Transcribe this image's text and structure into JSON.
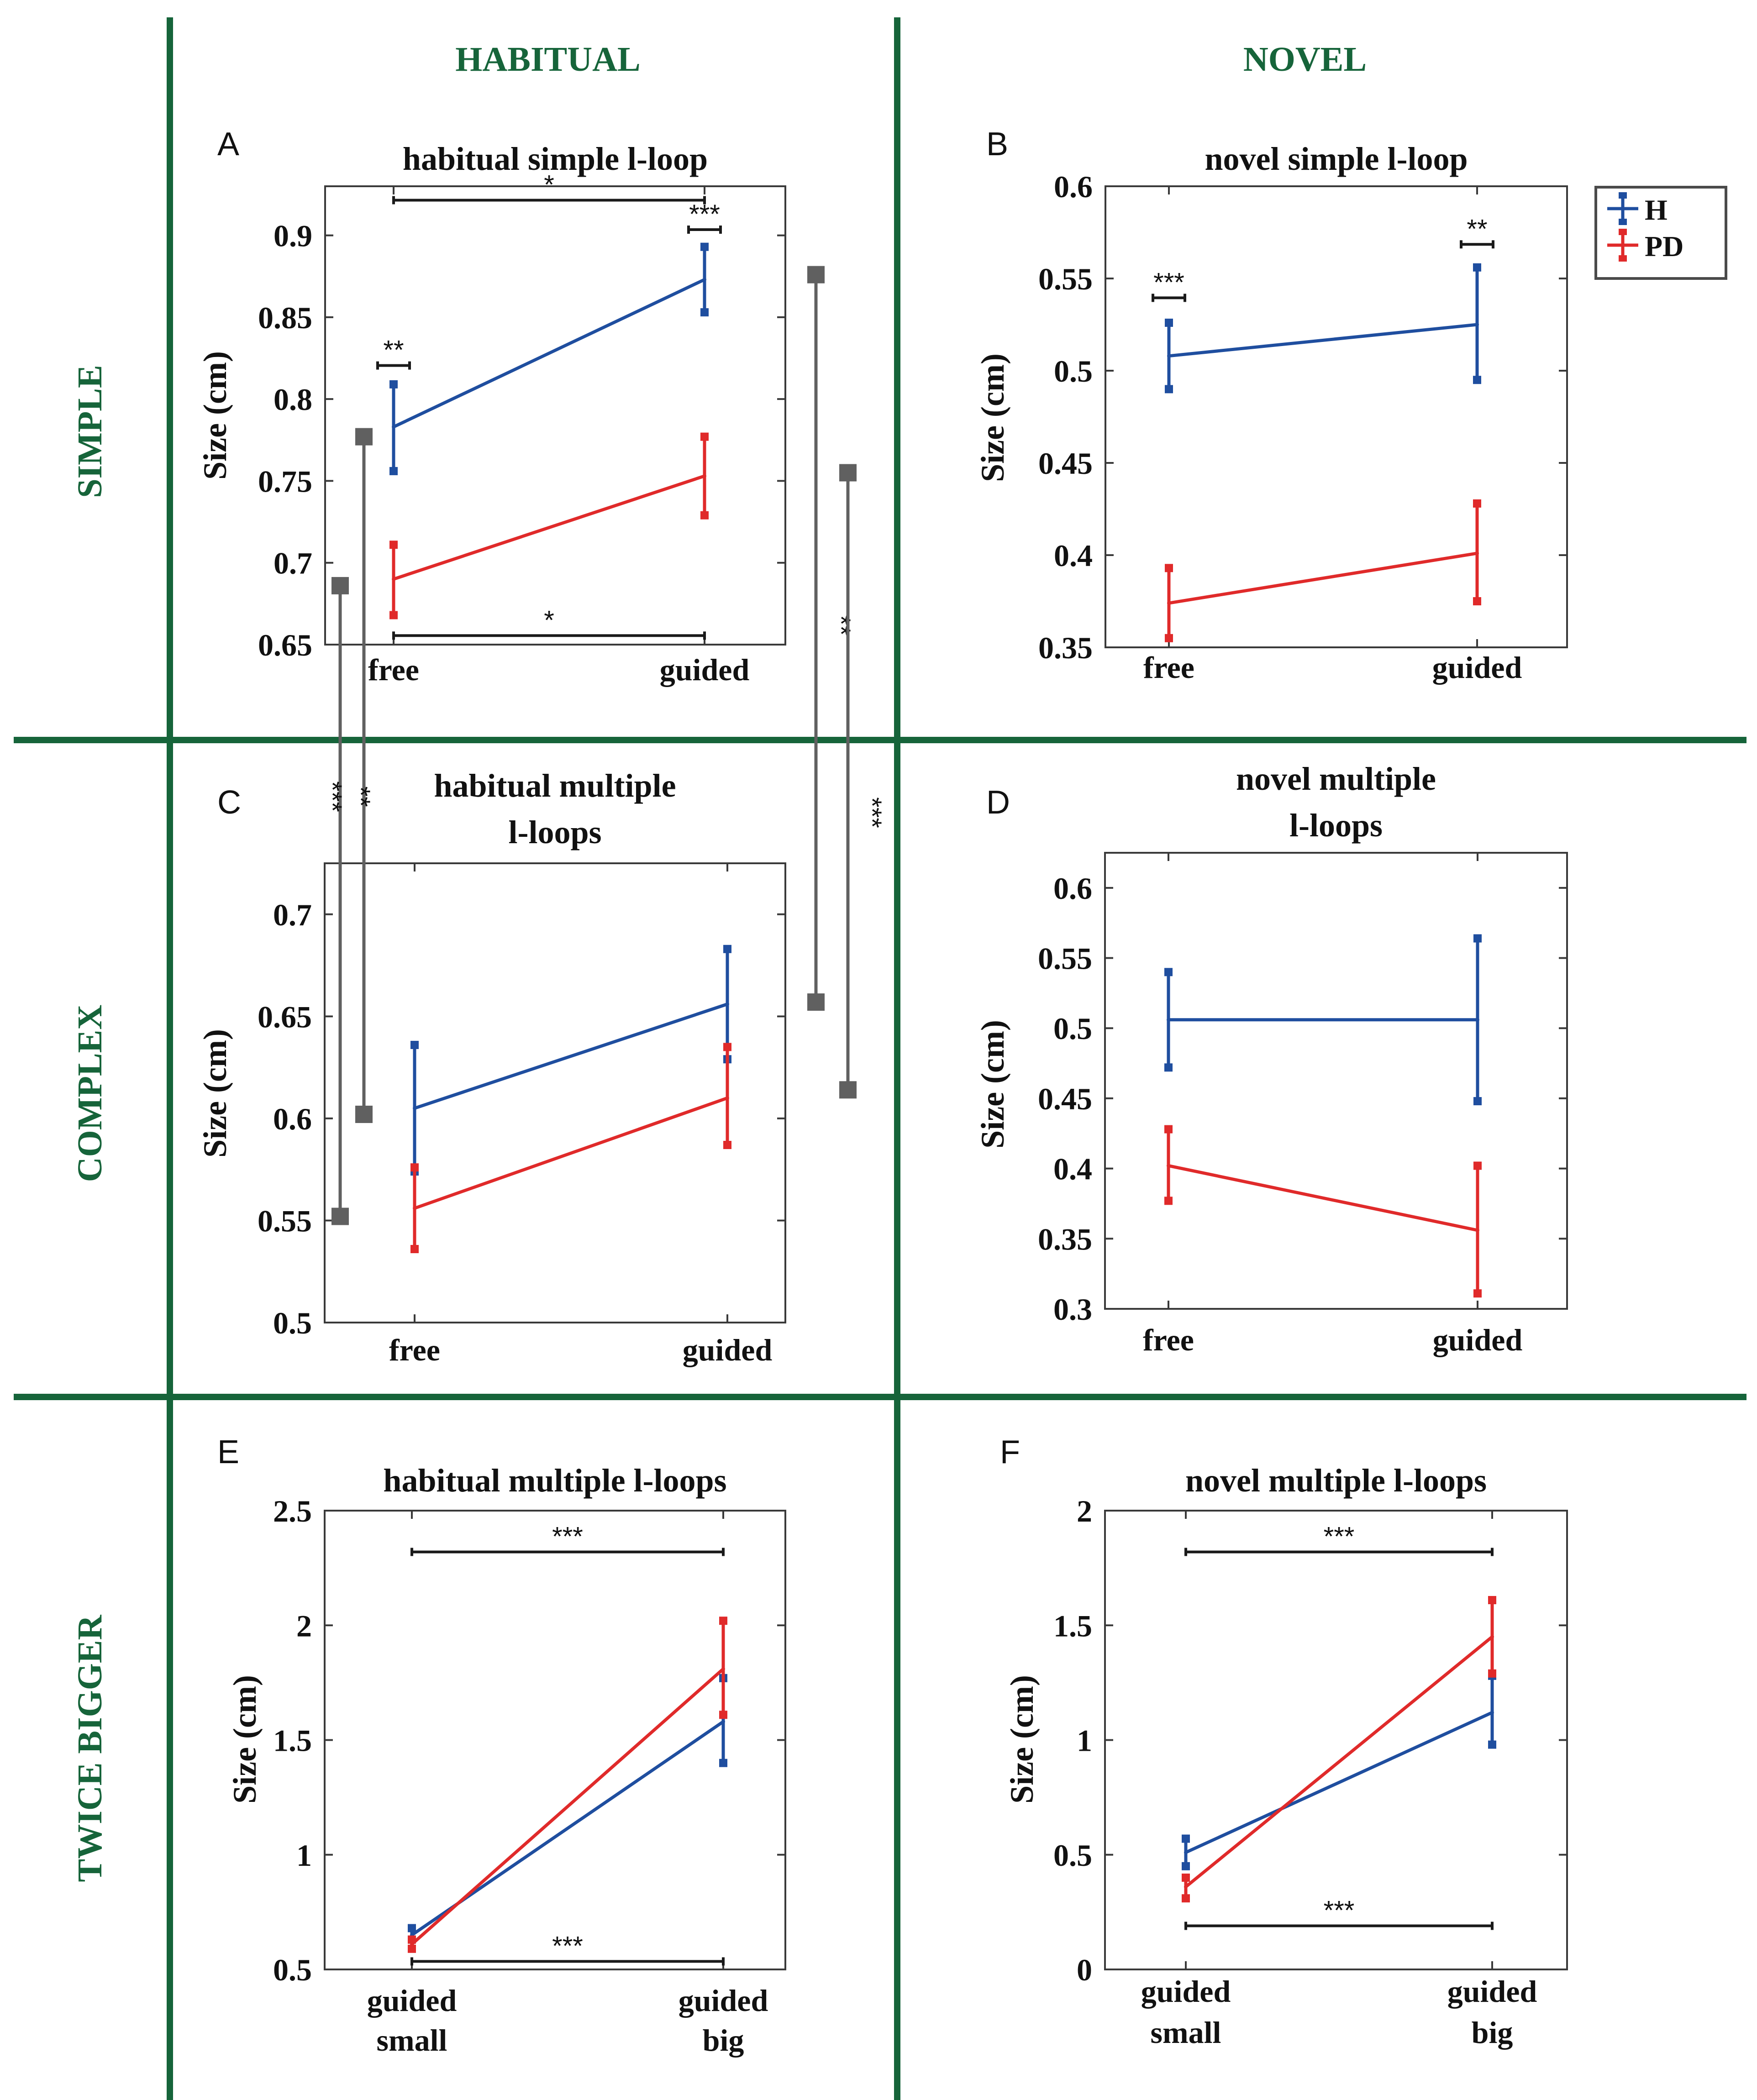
{
  "layout_labels": {
    "columns": [
      "HABITUAL",
      "NOVEL"
    ],
    "rows": [
      "SIMPLE",
      "COMPLEX",
      "TWICE BIGGER"
    ]
  },
  "colors": {
    "H": "#1f4e9f",
    "PD": "#e02a2a",
    "grid_lines": "#16643a",
    "connectors": "#606060",
    "brackets": "#1a1a1a"
  },
  "legend": {
    "entries": [
      {
        "label": "H",
        "series": "H"
      },
      {
        "label": "PD",
        "series": "PD"
      }
    ],
    "location": "right of panel B"
  },
  "ylabel": "Size (cm)",
  "chart_data": [
    {
      "id": "A",
      "panel_letter": "A",
      "title": [
        "habitual simple l-loop"
      ],
      "type": "line",
      "categories": [
        "free",
        "guided"
      ],
      "ylabel": "Size (cm)",
      "ylim": [
        0.65,
        0.93
      ],
      "yticks": [
        0.65,
        0.7,
        0.75,
        0.8,
        0.85,
        0.9
      ],
      "yticklabels": [
        "0.65",
        "0.7",
        "0.75",
        "0.8",
        "0.85",
        "0.9"
      ],
      "series": [
        {
          "key": "H",
          "values": [
            0.783,
            0.873
          ],
          "err_low": [
            0.756,
            0.853
          ],
          "err_high": [
            0.809,
            0.893
          ]
        },
        {
          "key": "PD",
          "values": [
            0.69,
            0.753
          ],
          "err_low": [
            0.668,
            0.729
          ],
          "err_high": [
            0.711,
            0.777
          ]
        }
      ],
      "brackets": [
        {
          "from": 0,
          "to": 1,
          "y": 0.9215,
          "label": "*"
        },
        {
          "from": 0,
          "to": 1,
          "y": 0.6555,
          "label": "*"
        },
        {
          "from": 0,
          "to": 0,
          "y": 0.8205,
          "label": "**"
        },
        {
          "from": 1,
          "to": 1,
          "y": 0.9035,
          "label": "***"
        }
      ]
    },
    {
      "id": "B",
      "panel_letter": "B",
      "title": [
        "novel simple l-loop"
      ],
      "type": "line",
      "categories": [
        "free",
        "guided"
      ],
      "ylabel": "Size (cm)",
      "ylim": [
        0.35,
        0.6
      ],
      "yticks": [
        0.35,
        0.4,
        0.45,
        0.5,
        0.55,
        0.6
      ],
      "yticklabels": [
        "0.35",
        "0.4",
        "0.45",
        "0.5",
        "0.55",
        "0.6"
      ],
      "series": [
        {
          "key": "H",
          "values": [
            0.508,
            0.525
          ],
          "err_low": [
            0.49,
            0.495
          ],
          "err_high": [
            0.526,
            0.556
          ]
        },
        {
          "key": "PD",
          "values": [
            0.374,
            0.401
          ],
          "err_low": [
            0.355,
            0.375
          ],
          "err_high": [
            0.393,
            0.428
          ]
        }
      ],
      "brackets": [
        {
          "from": 0,
          "to": 0,
          "y": 0.5395,
          "label": "***"
        },
        {
          "from": 1,
          "to": 1,
          "y": 0.5685,
          "label": "**"
        }
      ]
    },
    {
      "id": "C",
      "panel_letter": "C",
      "title": [
        "habitual multiple",
        "l-loops"
      ],
      "type": "line",
      "categories": [
        "free",
        "guided"
      ],
      "ylabel": "Size (cm)",
      "ylim": [
        0.5,
        0.725
      ],
      "yticks": [
        0.5,
        0.55,
        0.6,
        0.65,
        0.7
      ],
      "yticklabels": [
        "0.5",
        "0.55",
        "0.6",
        "0.65",
        "0.7"
      ],
      "series": [
        {
          "key": "H",
          "values": [
            0.605,
            0.656
          ],
          "err_low": [
            0.574,
            0.629
          ],
          "err_high": [
            0.636,
            0.683
          ]
        },
        {
          "key": "PD",
          "values": [
            0.556,
            0.61
          ],
          "err_low": [
            0.536,
            0.587
          ],
          "err_high": [
            0.576,
            0.635
          ]
        }
      ],
      "brackets": []
    },
    {
      "id": "D",
      "panel_letter": "D",
      "title": [
        "novel multiple",
        "l-loops"
      ],
      "type": "line",
      "categories": [
        "free",
        "guided"
      ],
      "ylabel": "Size (cm)",
      "ylim": [
        0.3,
        0.625
      ],
      "yticks": [
        0.3,
        0.35,
        0.4,
        0.45,
        0.5,
        0.55,
        0.6
      ],
      "yticklabels": [
        "0.3",
        "0.35",
        "0.4",
        "0.45",
        "0.5",
        "0.55",
        "0.6"
      ],
      "series": [
        {
          "key": "H",
          "values": [
            0.506,
            0.506
          ],
          "err_low": [
            0.472,
            0.448
          ],
          "err_high": [
            0.54,
            0.564
          ]
        },
        {
          "key": "PD",
          "values": [
            0.402,
            0.356
          ],
          "err_low": [
            0.377,
            0.311
          ],
          "err_high": [
            0.428,
            0.402
          ]
        }
      ],
      "brackets": []
    },
    {
      "id": "E",
      "panel_letter": "E",
      "title": [
        "habitual multiple l-loops"
      ],
      "type": "line",
      "categories": [
        [
          "guided",
          "small"
        ],
        [
          "guided",
          "big"
        ]
      ],
      "ylabel": "Size (cm)",
      "ylim": [
        0.5,
        2.5
      ],
      "yticks": [
        0.5,
        1,
        1.5,
        2,
        2.5
      ],
      "yticklabels": [
        "0.5",
        "1",
        "1.5",
        "2",
        "2.5"
      ],
      "series": [
        {
          "key": "H",
          "values": [
            0.65,
            1.58
          ],
          "err_low": [
            0.63,
            1.4
          ],
          "err_high": [
            0.68,
            1.77
          ]
        },
        {
          "key": "PD",
          "values": [
            0.61,
            1.81
          ],
          "err_low": [
            0.59,
            1.61
          ],
          "err_high": [
            0.63,
            2.02
          ]
        }
      ],
      "brackets": [
        {
          "from": 0,
          "to": 1,
          "y": 2.32,
          "label": "***"
        },
        {
          "from": 0,
          "to": 1,
          "y": 0.535,
          "label": "***"
        }
      ]
    },
    {
      "id": "F",
      "panel_letter": "F",
      "title": [
        "novel multiple l-loops"
      ],
      "type": "line",
      "categories": [
        [
          "guided",
          "small"
        ],
        [
          "guided",
          "big"
        ]
      ],
      "ylabel": "Size (cm)",
      "ylim": [
        0,
        2
      ],
      "yticks": [
        0,
        0.5,
        1,
        1.5,
        2
      ],
      "yticklabels": [
        "0",
        "0.5",
        "1",
        "1.5",
        "2"
      ],
      "series": [
        {
          "key": "H",
          "values": [
            0.51,
            1.12
          ],
          "err_low": [
            0.45,
            0.98
          ],
          "err_high": [
            0.57,
            1.28
          ]
        },
        {
          "key": "PD",
          "values": [
            0.36,
            1.45
          ],
          "err_low": [
            0.31,
            1.29
          ],
          "err_high": [
            0.4,
            1.61
          ]
        }
      ],
      "brackets": [
        {
          "from": 0,
          "to": 1,
          "y": 1.82,
          "label": "***"
        },
        {
          "from": 0,
          "to": 1,
          "y": 0.19,
          "label": "***"
        }
      ]
    }
  ],
  "cross_panel_comparisons": [
    {
      "from": {
        "panel": "A",
        "y": 0.686
      },
      "to": {
        "panel": "C",
        "y": 0.552
      },
      "label": "***"
    },
    {
      "from": {
        "panel": "A",
        "y": 0.777
      },
      "to": {
        "panel": "C",
        "y": 0.602
      },
      "label": "**"
    },
    {
      "from": {
        "panel": "A",
        "y": 0.876
      },
      "to": {
        "panel": "C",
        "y": 0.657
      },
      "label": "**"
    },
    {
      "from": {
        "panel": "A",
        "y": 0.755
      },
      "to": {
        "panel": "C",
        "y": 0.614
      },
      "label": "***"
    }
  ]
}
